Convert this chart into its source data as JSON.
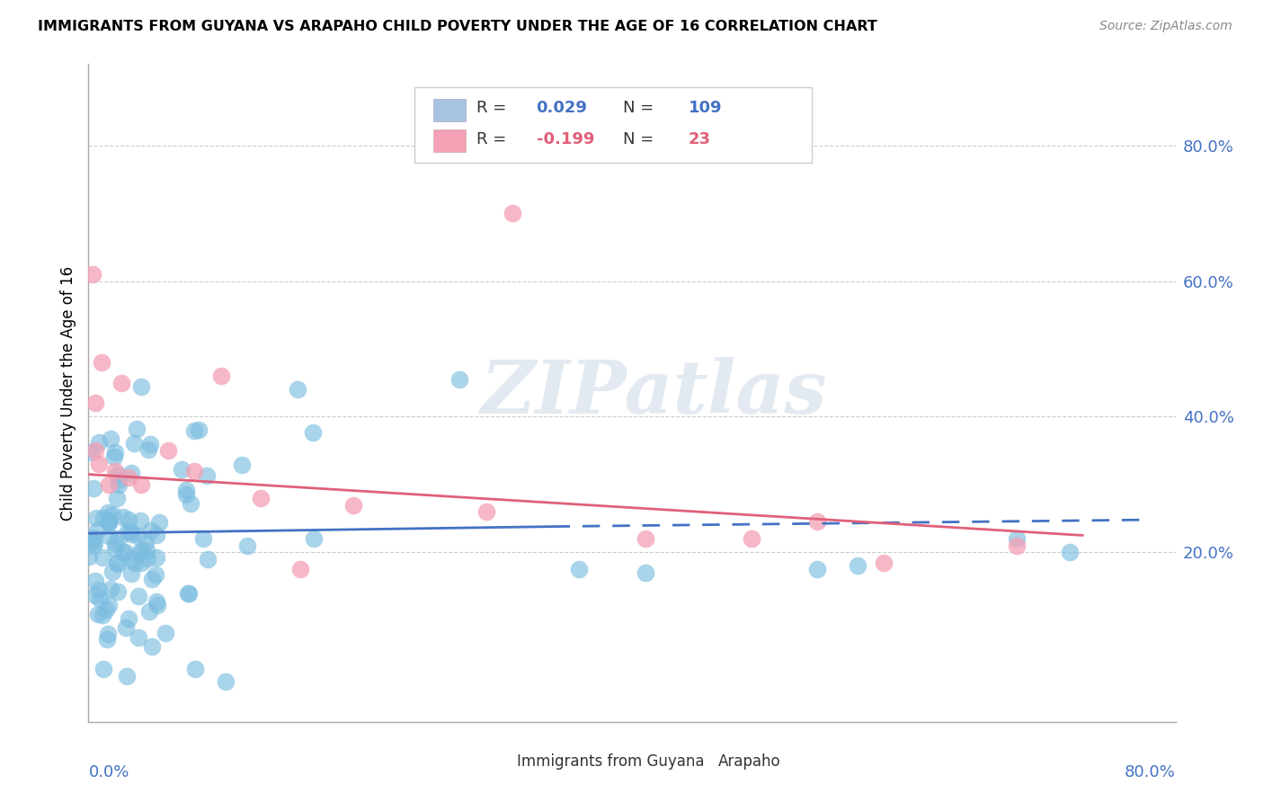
{
  "title": "IMMIGRANTS FROM GUYANA VS ARAPAHO CHILD POVERTY UNDER THE AGE OF 16 CORRELATION CHART",
  "source": "Source: ZipAtlas.com",
  "ylabel": "Child Poverty Under the Age of 16",
  "xlim": [
    0.0,
    0.82
  ],
  "ylim": [
    -0.05,
    0.92
  ],
  "yticks_right": [
    0.2,
    0.4,
    0.6,
    0.8
  ],
  "ytick_labels_right": [
    "20.0%",
    "40.0%",
    "60.0%",
    "80.0%"
  ],
  "watermark": "ZIPatlas",
  "series1_color": "#7bbde0",
  "series1_line_color": "#4472c4",
  "series2_color": "#f4a0b5",
  "series2_line_color": "#e0607a",
  "legend_box_color": "#a8c4e0",
  "legend_pink_color": "#f4a0b5",
  "series1_R": "0.029",
  "series1_N": "109",
  "series2_R": "-0.199",
  "series2_N": "23"
}
